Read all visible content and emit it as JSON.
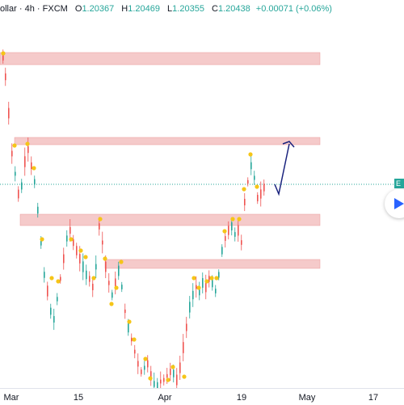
{
  "legend": {
    "symbol_fragment": "ollar",
    "interval": "4h",
    "broker": "FXCM",
    "o_label": "O",
    "o_value": "1.20367",
    "h_label": "H",
    "h_value": "1.20469",
    "l_label": "L",
    "l_value": "1.20355",
    "c_label": "C",
    "c_value": "1.20438",
    "change": "+0.00071 (+0.06%)"
  },
  "x_axis": {
    "labels": [
      "Mar",
      "15",
      "Apr",
      "19",
      "May",
      "17"
    ]
  },
  "price_tag": {
    "text": "E"
  },
  "colors": {
    "up": "#26a69a",
    "down": "#ef5350",
    "zone": "#f2b8b8",
    "zone_border": "#e99a9a",
    "marker": "#f5c518",
    "arrow": "#1a237e",
    "price_line": "#26a69a",
    "play": "#2962ff"
  },
  "icons": {
    "play": "play-icon"
  }
}
